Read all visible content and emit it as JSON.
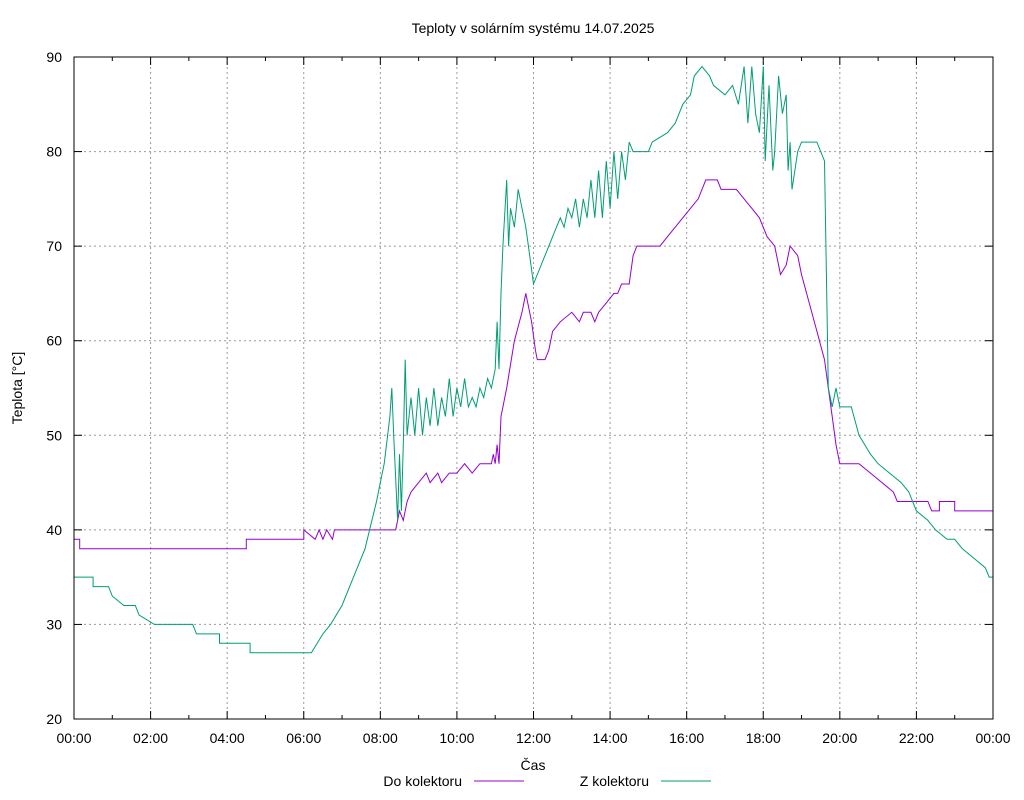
{
  "chart_data": {
    "type": "line",
    "title": "Teploty v solárním systému 14.07.2025",
    "xlabel": "Čas",
    "ylabel": "Teplota [°C]",
    "x_unit": "hour of day",
    "xlim": [
      0,
      24
    ],
    "ylim": [
      20,
      90
    ],
    "grid": true,
    "legend_position": "bottom-center",
    "x_ticks": [
      0,
      2,
      4,
      6,
      8,
      10,
      12,
      14,
      16,
      18,
      20,
      22,
      24
    ],
    "x_tick_labels": [
      "00:00",
      "02:00",
      "04:00",
      "06:00",
      "08:00",
      "10:00",
      "12:00",
      "14:00",
      "16:00",
      "18:00",
      "20:00",
      "22:00",
      "00:00"
    ],
    "y_ticks": [
      20,
      30,
      40,
      50,
      60,
      70,
      80,
      90
    ],
    "y_tick_labels": [
      "20",
      "30",
      "40",
      "50",
      "60",
      "70",
      "80",
      "90"
    ],
    "series": [
      {
        "name": "Do kolektoru",
        "color": "#9400d3",
        "points": [
          [
            0,
            39
          ],
          [
            0.15,
            39
          ],
          [
            0.15,
            38
          ],
          [
            4.5,
            38
          ],
          [
            4.5,
            39
          ],
          [
            6.0,
            39
          ],
          [
            6.0,
            40
          ],
          [
            6.3,
            39
          ],
          [
            6.4,
            40
          ],
          [
            6.5,
            39
          ],
          [
            6.6,
            40
          ],
          [
            6.75,
            39
          ],
          [
            6.8,
            40
          ],
          [
            8.4,
            40
          ],
          [
            8.5,
            42
          ],
          [
            8.6,
            41
          ],
          [
            8.7,
            43
          ],
          [
            8.8,
            44
          ],
          [
            9.0,
            45
          ],
          [
            9.2,
            46
          ],
          [
            9.3,
            45
          ],
          [
            9.5,
            46
          ],
          [
            9.6,
            45
          ],
          [
            9.8,
            46
          ],
          [
            10.0,
            46
          ],
          [
            10.2,
            47
          ],
          [
            10.4,
            46
          ],
          [
            10.6,
            47
          ],
          [
            10.9,
            47
          ],
          [
            10.95,
            48
          ],
          [
            11.0,
            47
          ],
          [
            11.05,
            49
          ],
          [
            11.1,
            47
          ],
          [
            11.15,
            52
          ],
          [
            11.3,
            55
          ],
          [
            11.5,
            60
          ],
          [
            11.7,
            63
          ],
          [
            11.8,
            65
          ],
          [
            11.95,
            62
          ],
          [
            12.05,
            59
          ],
          [
            12.1,
            58
          ],
          [
            12.3,
            58
          ],
          [
            12.4,
            59
          ],
          [
            12.5,
            61
          ],
          [
            12.7,
            62
          ],
          [
            13.0,
            63
          ],
          [
            13.2,
            62
          ],
          [
            13.3,
            63
          ],
          [
            13.5,
            63
          ],
          [
            13.6,
            62
          ],
          [
            13.7,
            63
          ],
          [
            13.9,
            64
          ],
          [
            14.1,
            65
          ],
          [
            14.2,
            65
          ],
          [
            14.3,
            66
          ],
          [
            14.5,
            66
          ],
          [
            14.6,
            69
          ],
          [
            14.7,
            70
          ],
          [
            15.0,
            70
          ],
          [
            15.3,
            70
          ],
          [
            15.5,
            71
          ],
          [
            15.7,
            72
          ],
          [
            15.9,
            73
          ],
          [
            16.1,
            74
          ],
          [
            16.3,
            75
          ],
          [
            16.5,
            77
          ],
          [
            16.8,
            77
          ],
          [
            16.9,
            76
          ],
          [
            17.3,
            76
          ],
          [
            17.5,
            75
          ],
          [
            17.7,
            74
          ],
          [
            17.9,
            73
          ],
          [
            18.1,
            71
          ],
          [
            18.3,
            70
          ],
          [
            18.45,
            67
          ],
          [
            18.6,
            68
          ],
          [
            18.7,
            70
          ],
          [
            18.9,
            69
          ],
          [
            19.0,
            67
          ],
          [
            19.2,
            64
          ],
          [
            19.4,
            61
          ],
          [
            19.6,
            58
          ],
          [
            19.7,
            55
          ],
          [
            19.8,
            52
          ],
          [
            19.9,
            49
          ],
          [
            20.0,
            47
          ],
          [
            20.5,
            47
          ],
          [
            20.8,
            46
          ],
          [
            21.1,
            45
          ],
          [
            21.4,
            44
          ],
          [
            21.5,
            43
          ],
          [
            22.0,
            43
          ],
          [
            22.3,
            43
          ],
          [
            22.4,
            42
          ],
          [
            22.6,
            42
          ],
          [
            22.6,
            43
          ],
          [
            23.0,
            43
          ],
          [
            23.0,
            42
          ],
          [
            24.0,
            42
          ]
        ]
      },
      {
        "name": "Z kolektoru",
        "color": "#009e73",
        "points": [
          [
            0,
            35
          ],
          [
            0.5,
            35
          ],
          [
            0.5,
            34
          ],
          [
            0.9,
            34
          ],
          [
            1.0,
            33
          ],
          [
            1.3,
            32
          ],
          [
            1.6,
            32
          ],
          [
            1.7,
            31
          ],
          [
            2.1,
            30
          ],
          [
            3.1,
            30
          ],
          [
            3.2,
            29
          ],
          [
            3.8,
            29
          ],
          [
            3.8,
            28
          ],
          [
            4.6,
            28
          ],
          [
            4.6,
            27
          ],
          [
            6.2,
            27
          ],
          [
            6.5,
            29
          ],
          [
            6.7,
            30
          ],
          [
            7.0,
            32
          ],
          [
            7.3,
            35
          ],
          [
            7.6,
            38
          ],
          [
            7.9,
            43
          ],
          [
            8.1,
            47
          ],
          [
            8.25,
            52
          ],
          [
            8.3,
            55
          ],
          [
            8.35,
            50
          ],
          [
            8.45,
            41
          ],
          [
            8.5,
            48
          ],
          [
            8.55,
            42
          ],
          [
            8.6,
            49
          ],
          [
            8.65,
            58
          ],
          [
            8.7,
            50
          ],
          [
            8.8,
            54
          ],
          [
            8.9,
            50
          ],
          [
            9.0,
            55
          ],
          [
            9.1,
            50
          ],
          [
            9.2,
            54
          ],
          [
            9.3,
            51
          ],
          [
            9.4,
            55
          ],
          [
            9.5,
            51
          ],
          [
            9.6,
            54
          ],
          [
            9.7,
            52
          ],
          [
            9.8,
            56
          ],
          [
            9.9,
            52
          ],
          [
            10.0,
            55
          ],
          [
            10.1,
            53
          ],
          [
            10.2,
            56
          ],
          [
            10.3,
            53
          ],
          [
            10.4,
            54
          ],
          [
            10.5,
            53
          ],
          [
            10.6,
            55
          ],
          [
            10.7,
            54
          ],
          [
            10.8,
            56
          ],
          [
            10.9,
            55
          ],
          [
            11.0,
            57
          ],
          [
            11.05,
            62
          ],
          [
            11.1,
            57
          ],
          [
            11.15,
            65
          ],
          [
            11.2,
            70
          ],
          [
            11.3,
            77
          ],
          [
            11.35,
            70
          ],
          [
            11.4,
            74
          ],
          [
            11.5,
            72
          ],
          [
            11.6,
            76
          ],
          [
            11.7,
            74
          ],
          [
            11.8,
            72
          ],
          [
            11.9,
            69
          ],
          [
            12.0,
            66
          ],
          [
            12.1,
            67
          ],
          [
            12.3,
            69
          ],
          [
            12.5,
            71
          ],
          [
            12.7,
            73
          ],
          [
            12.8,
            72
          ],
          [
            12.9,
            74
          ],
          [
            13.0,
            73
          ],
          [
            13.1,
            75
          ],
          [
            13.2,
            72
          ],
          [
            13.3,
            75
          ],
          [
            13.4,
            73
          ],
          [
            13.5,
            77
          ],
          [
            13.6,
            73
          ],
          [
            13.7,
            78
          ],
          [
            13.8,
            73
          ],
          [
            13.9,
            79
          ],
          [
            14.0,
            74
          ],
          [
            14.1,
            80
          ],
          [
            14.2,
            75
          ],
          [
            14.3,
            80
          ],
          [
            14.4,
            77
          ],
          [
            14.5,
            81
          ],
          [
            14.6,
            80
          ],
          [
            14.9,
            80
          ],
          [
            15.0,
            80
          ],
          [
            15.1,
            81
          ],
          [
            15.5,
            82
          ],
          [
            15.7,
            83
          ],
          [
            15.9,
            85
          ],
          [
            16.1,
            86
          ],
          [
            16.2,
            88
          ],
          [
            16.4,
            89
          ],
          [
            16.6,
            88
          ],
          [
            16.7,
            87
          ],
          [
            17.0,
            86
          ],
          [
            17.2,
            87
          ],
          [
            17.35,
            85
          ],
          [
            17.5,
            89
          ],
          [
            17.6,
            83
          ],
          [
            17.7,
            89
          ],
          [
            17.8,
            84
          ],
          [
            17.9,
            82
          ],
          [
            18.0,
            89
          ],
          [
            18.05,
            79
          ],
          [
            18.15,
            87
          ],
          [
            18.25,
            78
          ],
          [
            18.3,
            80
          ],
          [
            18.4,
            88
          ],
          [
            18.5,
            84
          ],
          [
            18.6,
            86
          ],
          [
            18.65,
            78
          ],
          [
            18.7,
            81
          ],
          [
            18.75,
            76
          ],
          [
            18.9,
            80
          ],
          [
            19.0,
            81
          ],
          [
            19.4,
            81
          ],
          [
            19.6,
            79
          ],
          [
            19.7,
            55
          ],
          [
            19.8,
            53
          ],
          [
            19.9,
            55
          ],
          [
            20.0,
            53
          ],
          [
            20.3,
            53
          ],
          [
            20.5,
            50
          ],
          [
            20.8,
            48
          ],
          [
            21.0,
            47
          ],
          [
            21.3,
            46
          ],
          [
            21.6,
            45
          ],
          [
            21.8,
            44
          ],
          [
            22.0,
            42
          ],
          [
            22.3,
            41
          ],
          [
            22.5,
            40
          ],
          [
            22.8,
            39
          ],
          [
            23.0,
            39
          ],
          [
            23.2,
            38
          ],
          [
            23.5,
            37
          ],
          [
            23.8,
            36
          ],
          [
            23.9,
            35
          ],
          [
            24.0,
            35
          ]
        ]
      }
    ]
  }
}
